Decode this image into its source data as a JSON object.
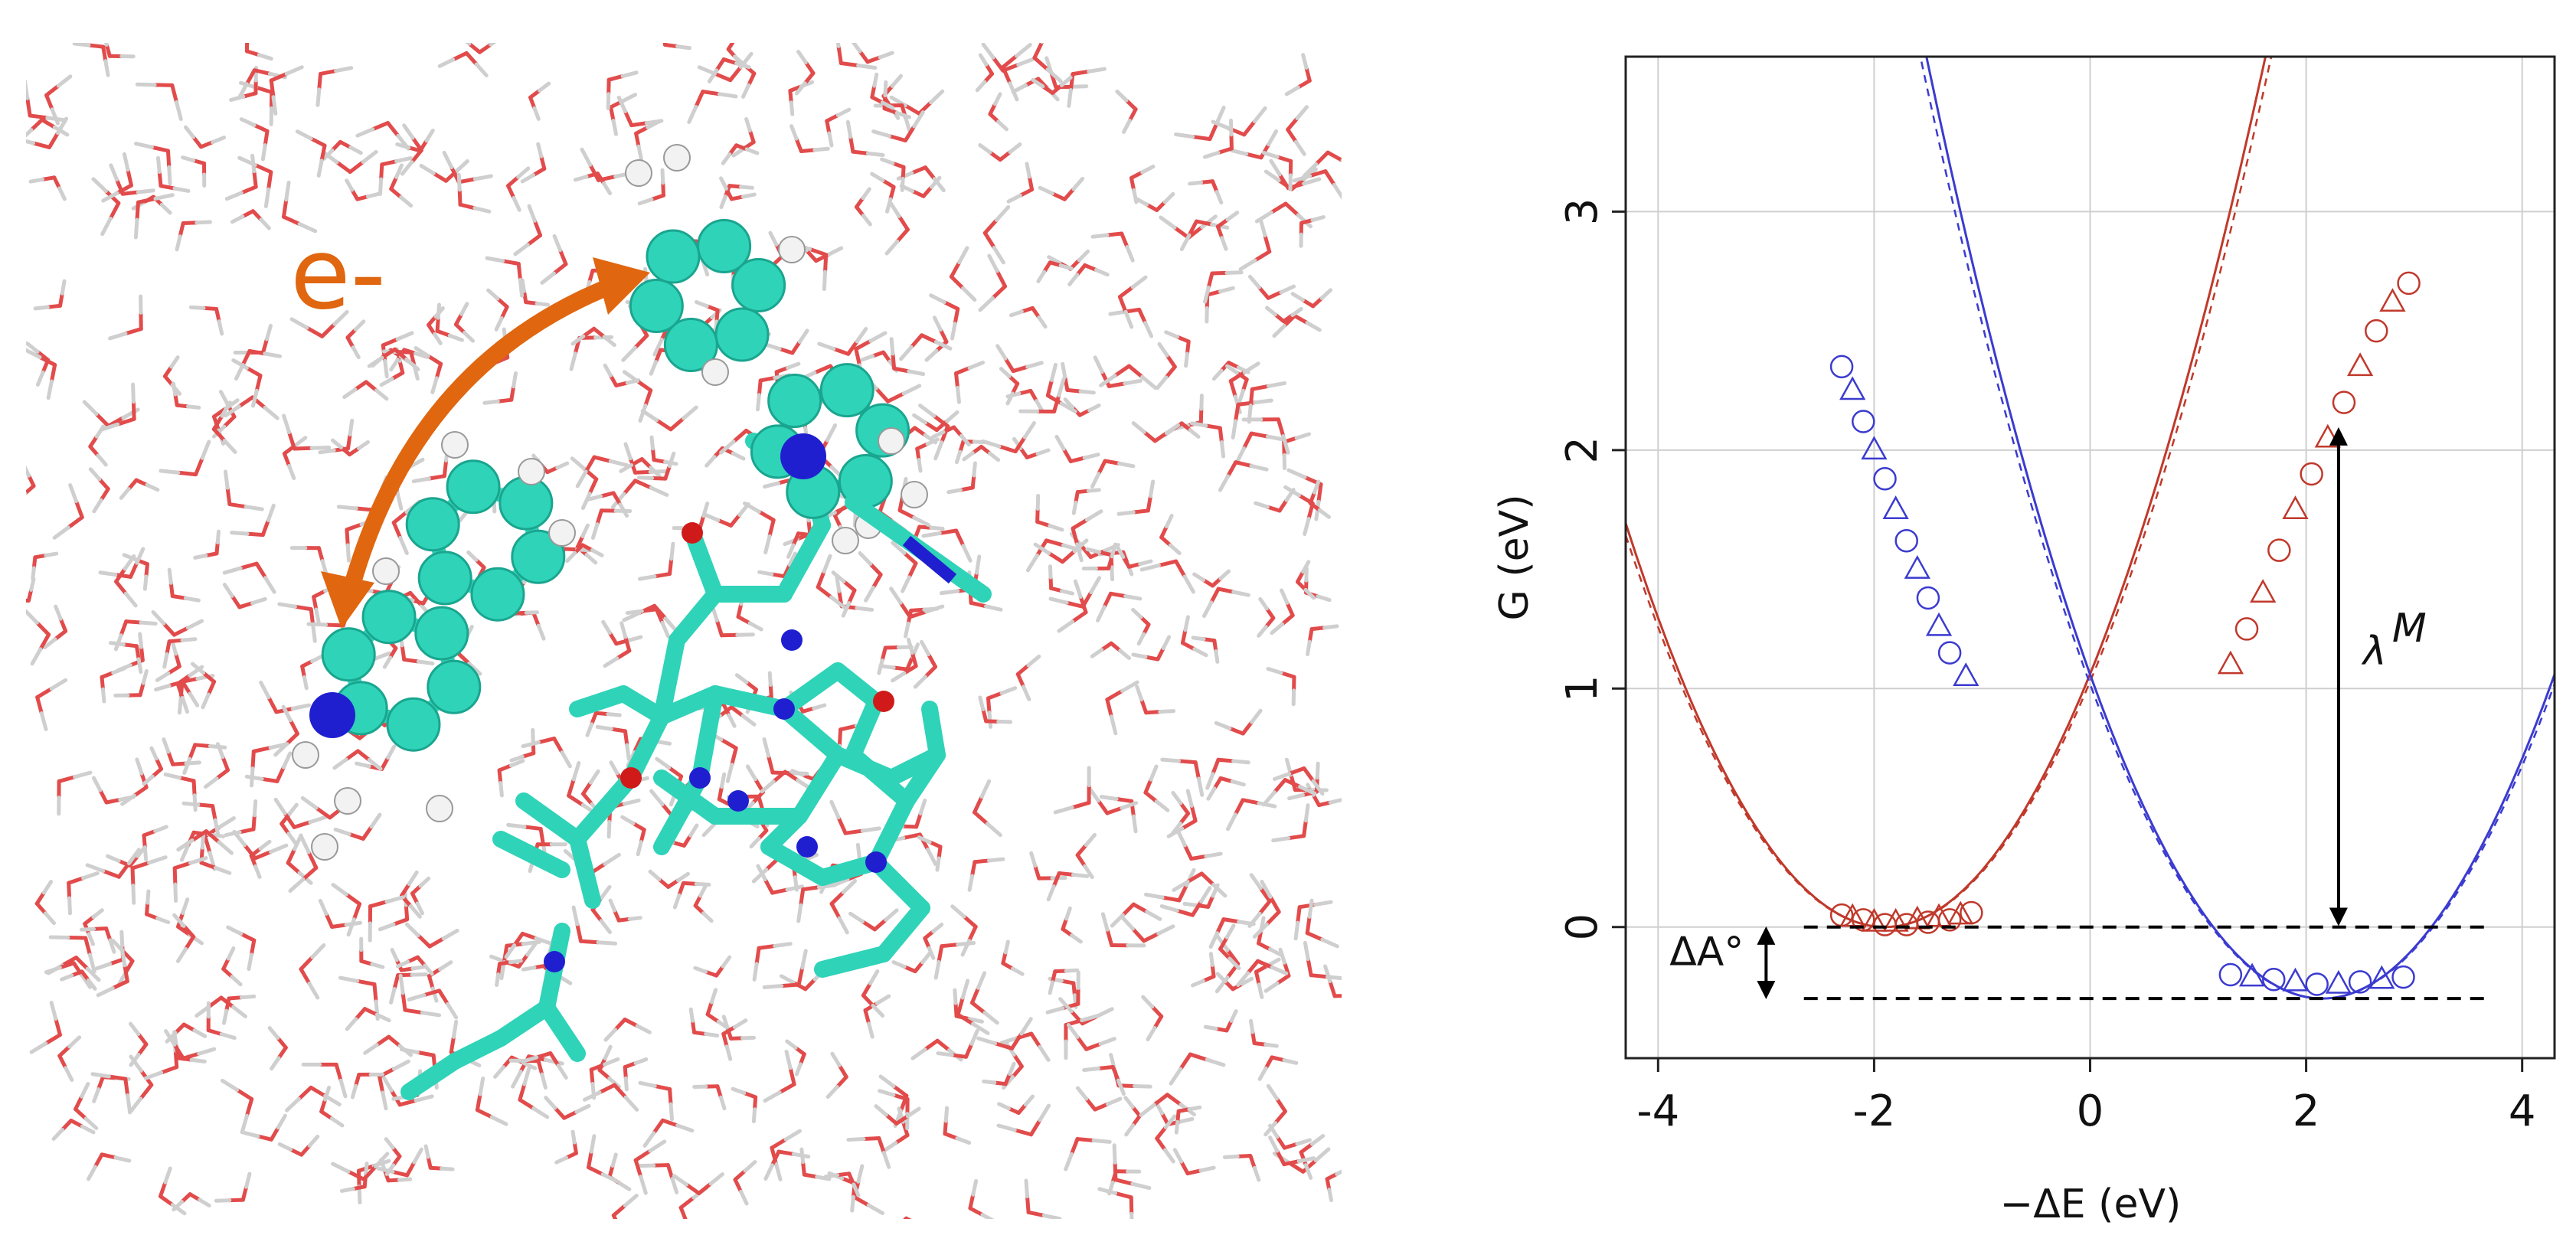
{
  "molecule_panel": {
    "electron_label": "e-",
    "colors": {
      "water_oxygen": "#E24B4B",
      "water_hydrogen": "#CFCFCF",
      "carbon": "#2FD3B8",
      "nitrogen": "#1F1FD0",
      "oxygen": "#D01A1A",
      "hydrogen": "#F2F2F2",
      "arrow": "#E0660F"
    }
  },
  "chart_data": {
    "type": "line",
    "xlabel": "−ΔE (eV)",
    "ylabel": "G (eV)",
    "xlim": [
      -4.3,
      4.3
    ],
    "ylim": [
      -0.55,
      3.65
    ],
    "xticks": [
      -4,
      -2,
      0,
      2,
      4
    ],
    "yticks": [
      0,
      1,
      2,
      3
    ],
    "grid": true,
    "annotations": {
      "reorganization_energy": "λ",
      "reorganization_superscript": "M",
      "free_energy_difference": "ΔA°",
      "lambda_x": 2.3,
      "lambda_range": [
        0,
        2.1
      ],
      "delta_a_range": [
        -0.3,
        0
      ]
    },
    "reference_lines_y": [
      0,
      -0.3
    ],
    "series": [
      {
        "color": "#C0392B",
        "curve_vertex": [
          -1.9,
          0
        ],
        "curve_curvature": 0.105,
        "points": [
          [
            -2.3,
            0.05
          ],
          [
            -2.2,
            0.04
          ],
          [
            -2.1,
            0.03
          ],
          [
            -2.0,
            0.02
          ],
          [
            -1.9,
            0.01
          ],
          [
            -1.8,
            0.02
          ],
          [
            -1.7,
            0.01
          ],
          [
            -1.6,
            0.03
          ],
          [
            -1.5,
            0.02
          ],
          [
            -1.4,
            0.04
          ],
          [
            -1.3,
            0.03
          ],
          [
            -1.2,
            0.05
          ],
          [
            -1.1,
            0.06
          ],
          [
            1.3,
            1.1
          ],
          [
            1.45,
            1.25
          ],
          [
            1.6,
            1.4
          ],
          [
            1.75,
            1.58
          ],
          [
            1.9,
            1.75
          ],
          [
            2.05,
            1.9
          ],
          [
            2.2,
            2.05
          ],
          [
            2.35,
            2.2
          ],
          [
            2.5,
            2.35
          ],
          [
            2.65,
            2.5
          ],
          [
            2.8,
            2.62
          ],
          [
            2.95,
            2.7
          ]
        ]
      },
      {
        "color": "#3B3BD0",
        "curve_vertex": [
          2.15,
          -0.3
        ],
        "curve_curvature": 0.105,
        "points": [
          [
            -2.3,
            2.35
          ],
          [
            -2.2,
            2.25
          ],
          [
            -2.1,
            2.12
          ],
          [
            -2.0,
            2.0
          ],
          [
            -1.9,
            1.88
          ],
          [
            -1.8,
            1.75
          ],
          [
            -1.7,
            1.62
          ],
          [
            -1.6,
            1.5
          ],
          [
            -1.5,
            1.38
          ],
          [
            -1.4,
            1.26
          ],
          [
            -1.3,
            1.15
          ],
          [
            -1.15,
            1.05
          ],
          [
            1.3,
            -0.2
          ],
          [
            1.5,
            -0.21
          ],
          [
            1.7,
            -0.22
          ],
          [
            1.9,
            -0.23
          ],
          [
            2.1,
            -0.24
          ],
          [
            2.3,
            -0.24
          ],
          [
            2.5,
            -0.23
          ],
          [
            2.7,
            -0.22
          ],
          [
            2.9,
            -0.21
          ]
        ]
      }
    ]
  }
}
